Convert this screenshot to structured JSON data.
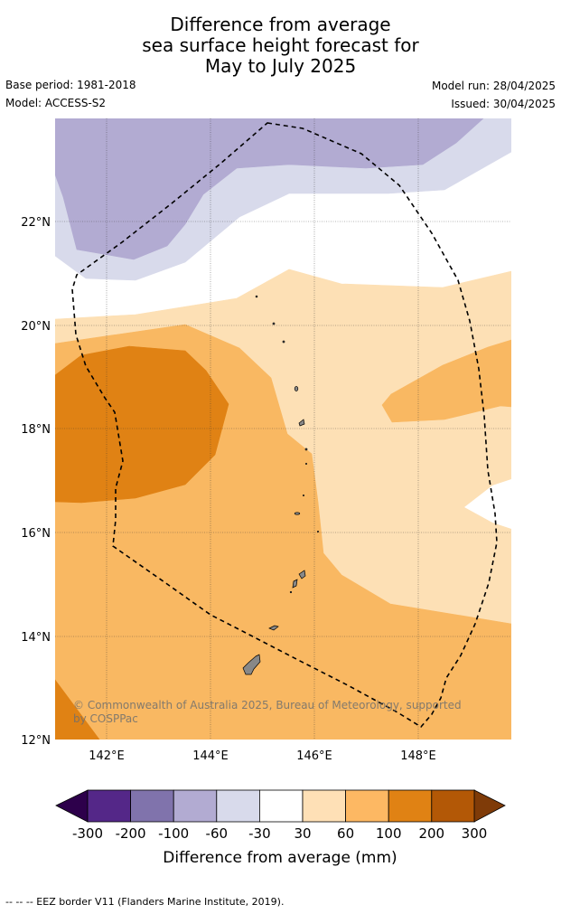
{
  "header": {
    "title_lines": [
      "Difference from average",
      "sea surface height forecast for",
      "May to July 2025"
    ],
    "base_period": "Base period: 1981-2018",
    "model": "Model: ACCESS-S2",
    "model_run": "Model run: 28/04/2025",
    "issued": "Issued: 30/04/2025"
  },
  "map": {
    "lat_labels": [
      "22°N",
      "20°N",
      "18°N",
      "16°N",
      "14°N",
      "12°N"
    ],
    "lon_labels": [
      "142°E",
      "144°E",
      "146°E",
      "148°E"
    ],
    "lat_values": [
      22,
      20,
      18,
      16,
      14,
      12
    ],
    "lon_values": [
      142,
      144,
      146,
      148
    ],
    "lat_range": [
      12,
      24
    ],
    "lon_range": [
      141,
      149.8
    ],
    "copyright": "© Commonwealth of Australia 2025, Bureau of Meteorology, supported by COSPPac",
    "colors": {
      "p30_60": "#fde0b5",
      "p60_100": "#f9b862",
      "p100_200": "#e08214",
      "n30_60": "#d8daeb",
      "n60_100": "#b2abd2",
      "land": "#888888"
    }
  },
  "legend": {
    "ticks": [
      "-300",
      "-200",
      "-100",
      "-60",
      "-30",
      "30",
      "60",
      "100",
      "200",
      "300"
    ],
    "colors": [
      "#2d004b",
      "#542788",
      "#8073ac",
      "#b2abd2",
      "#d8daeb",
      "#ffffff",
      "#fee0b6",
      "#fdb863",
      "#e08214",
      "#b35806",
      "#7f3b08"
    ],
    "label": "Difference from average (mm)"
  },
  "footer": {
    "eez_note": "--  --  -- EEZ border V11 (Flanders Marine Institute, 2019)."
  }
}
